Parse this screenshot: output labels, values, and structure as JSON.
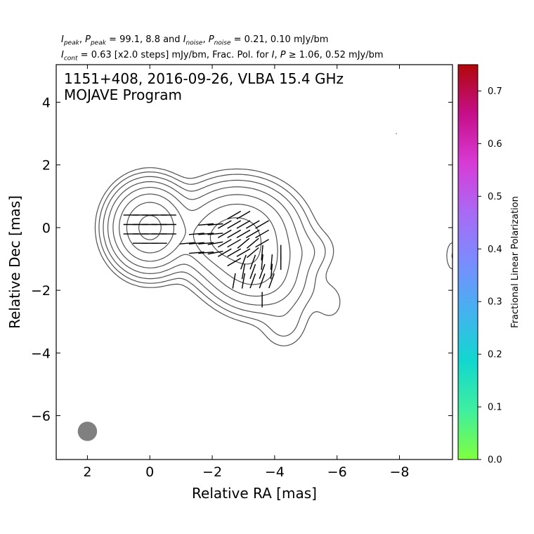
{
  "header": {
    "line1_parts": [
      {
        "t": "I",
        "i": true
      },
      {
        "t": "peak",
        "sub": true
      },
      {
        "t": ", "
      },
      {
        "t": "P",
        "i": true
      },
      {
        "t": "peak",
        "sub": true
      },
      {
        "t": " = 99.1, 8.8 and "
      },
      {
        "t": "I",
        "i": true
      },
      {
        "t": "noise",
        "sub": true
      },
      {
        "t": ", "
      },
      {
        "t": "P",
        "i": true
      },
      {
        "t": "noise",
        "sub": true
      },
      {
        "t": " = 0.21, 0.10 mJy/bm"
      }
    ],
    "line2_parts": [
      {
        "t": "I",
        "i": true
      },
      {
        "t": "cont",
        "sub": true
      },
      {
        "t": " = 0.63 [x2.0 steps] mJy/bm, Frac. Pol. for "
      },
      {
        "t": "I",
        "i": true
      },
      {
        "t": ", "
      },
      {
        "t": "P",
        "i": true
      },
      {
        "t": " ≥ 1.06, 0.52 mJy/bm"
      }
    ]
  },
  "chart_data": {
    "type": "heatmap",
    "title": "1151+408, 2016-09-26, VLBA 15.4 GHz",
    "subtitle": "MOJAVE Program",
    "xlabel": "Relative RA [mas]",
    "ylabel": "Relative Dec [mas]",
    "xlim": [
      3,
      -9.7
    ],
    "ylim": [
      -7.4,
      5.2
    ],
    "xticks": [
      2,
      0,
      -2,
      -4,
      -6,
      -8
    ],
    "yticks": [
      4,
      2,
      0,
      -2,
      -4,
      -6
    ],
    "xticklabels": [
      "2",
      "0",
      "−2",
      "−4",
      "−6",
      "−8"
    ],
    "yticklabels": [
      "4",
      "2",
      "0",
      "−2",
      "−4",
      "−6"
    ],
    "colorbar": {
      "label": "Fractional Linear Polarization",
      "range": [
        0.0,
        0.75
      ],
      "ticks": [
        0.0,
        0.1,
        0.2,
        0.3,
        0.4,
        0.5,
        0.6,
        0.7
      ],
      "ticklabels": [
        "0.0",
        "0.1",
        "0.2",
        "0.3",
        "0.4",
        "0.5",
        "0.6",
        "0.7"
      ],
      "colors": [
        "#7fff3f",
        "#3feea0",
        "#12d7d0",
        "#45b2f0",
        "#7a8cff",
        "#a96af5",
        "#d83bd6",
        "#c60f8a",
        "#b00808"
      ]
    },
    "beam": {
      "x": 2.0,
      "y": -6.5,
      "major_mas": 0.95,
      "minor_mas": 0.62,
      "color": "#808080"
    },
    "core": {
      "x": 0.0,
      "y": 0.0
    },
    "intensity_components": [
      {
        "x": 0.0,
        "y": 0.0,
        "sx": 0.55,
        "sy": 0.6,
        "amp": 99.1
      },
      {
        "x": -2.8,
        "y": -0.2,
        "sx": 0.85,
        "sy": 0.7,
        "amp": 50
      },
      {
        "x": -3.3,
        "y": -1.3,
        "sx": 0.7,
        "sy": 0.6,
        "amp": 22
      },
      {
        "x": -2.3,
        "y": -0.4,
        "sx": 0.6,
        "sy": 0.4,
        "amp": 12
      },
      {
        "x": -4.0,
        "y": -1.9,
        "sx": 0.8,
        "sy": 0.6,
        "amp": 3
      },
      {
        "x": -4.3,
        "y": -3.1,
        "sx": 0.45,
        "sy": 0.5,
        "amp": 1.5
      },
      {
        "x": -5.3,
        "y": -0.7,
        "sx": 0.5,
        "sy": 0.45,
        "amp": 0.85
      },
      {
        "x": -4.8,
        "y": -0.8,
        "sx": 0.5,
        "sy": 0.35,
        "amp": 1.2
      },
      {
        "x": -5.8,
        "y": -2.4,
        "sx": 0.3,
        "sy": 0.4,
        "amp": 0.9
      },
      {
        "x": -9.7,
        "y": -0.9,
        "sx": 0.15,
        "sy": 0.35,
        "amp": 1.3
      }
    ],
    "contour_base_mJy": 0.63,
    "contour_step": 2.0,
    "contour_levels_mJy": [
      0.63,
      1.26,
      2.52,
      5.04,
      10.08,
      20.16,
      40.32,
      80.64
    ],
    "polarization_regions": [
      {
        "x": 0.0,
        "y": 0.0,
        "rx": 0.75,
        "ry": 0.7,
        "frac": 0.05,
        "evpa_deg": 0
      },
      {
        "x": -1.9,
        "y": -0.45,
        "rx": 0.75,
        "ry": 0.6,
        "frac": 0.28,
        "evpa_deg": 5
      },
      {
        "x": -2.1,
        "y": -0.5,
        "rx": 0.35,
        "ry": 0.5,
        "frac": 0.22,
        "evpa_deg": 10
      },
      {
        "x": -2.9,
        "y": -0.35,
        "rx": 0.85,
        "ry": 0.8,
        "frac": 0.13,
        "evpa_deg": 30
      },
      {
        "x": -3.1,
        "y": -0.45,
        "rx": 0.55,
        "ry": 0.55,
        "frac": 0.06,
        "evpa_deg": 40
      },
      {
        "x": -3.4,
        "y": -1.45,
        "rx": 0.6,
        "ry": 0.55,
        "frac": 0.12,
        "evpa_deg": 70
      },
      {
        "x": -3.1,
        "y": -1.6,
        "rx": 0.45,
        "ry": 0.4,
        "frac": 0.08,
        "evpa_deg": 80
      },
      {
        "x": -3.7,
        "y": -1.2,
        "rx": 0.35,
        "ry": 0.45,
        "frac": 0.2,
        "evpa_deg": 85
      },
      {
        "x": -4.2,
        "y": -0.9,
        "rx": 0.2,
        "ry": 0.4,
        "frac": 0.3,
        "evpa_deg": 90
      },
      {
        "x": -3.6,
        "y": -2.2,
        "rx": 0.3,
        "ry": 0.15,
        "frac": 0.45,
        "evpa_deg": 90
      }
    ]
  }
}
